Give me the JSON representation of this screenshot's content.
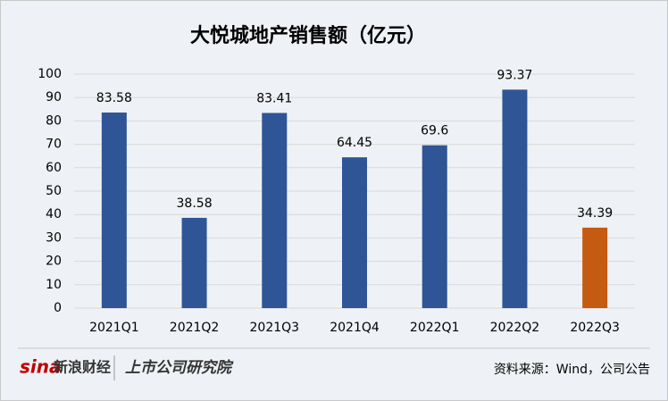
{
  "chart_data": {
    "type": "bar",
    "title": "大悦城地产销售额（亿元）",
    "categories": [
      "2021Q1",
      "2021Q2",
      "2021Q3",
      "2021Q4",
      "2022Q1",
      "2022Q2",
      "2022Q3"
    ],
    "values": [
      83.58,
      38.58,
      83.41,
      64.45,
      69.6,
      93.37,
      34.39
    ],
    "colors": [
      "#2f5597",
      "#2f5597",
      "#2f5597",
      "#2f5597",
      "#2f5597",
      "#2f5597",
      "#c55a11"
    ],
    "ylim": [
      0,
      100
    ],
    "yticks": [
      0,
      10,
      20,
      30,
      40,
      50,
      60,
      70,
      80,
      90,
      100
    ],
    "grid": true,
    "data_labels": true,
    "source": "资料来源：Wind，公司公告",
    "brands": [
      "sina",
      "新浪财经",
      "上市公司研究院"
    ]
  }
}
